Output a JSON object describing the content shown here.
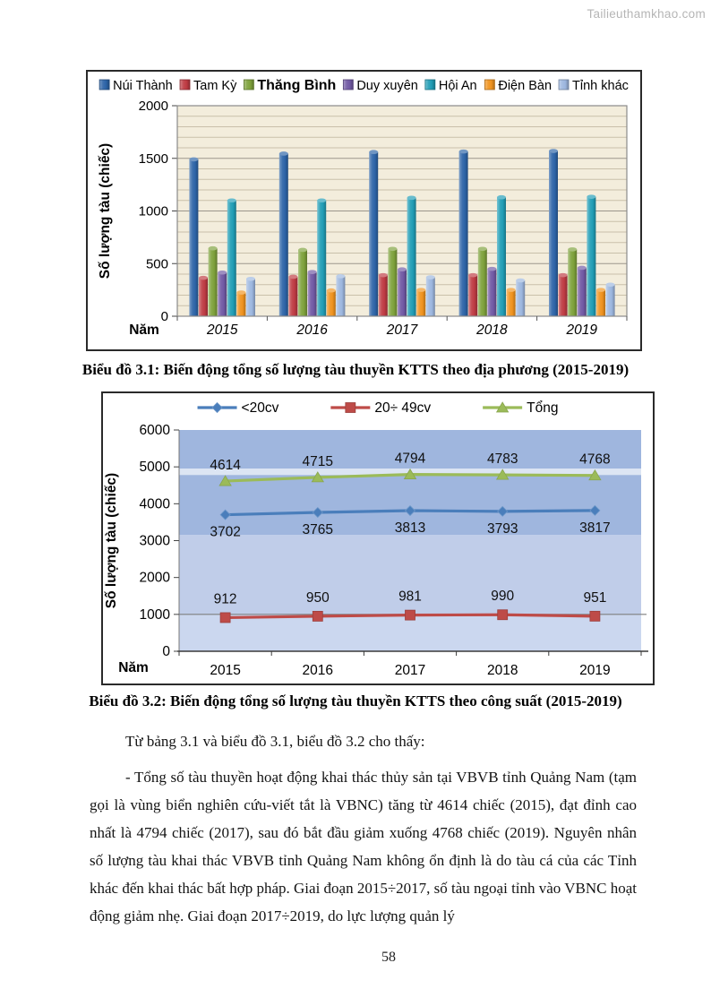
{
  "watermark": "Tailieuthamkhao.com",
  "page_number": "58",
  "captions": {
    "chart1": "Biểu đồ 3.1: Biến động tổng số lượng tàu thuyền KTTS theo địa phương (2015-2019)",
    "chart2": "Biểu đồ 3.2: Biến động tổng số lượng tàu thuyền KTTS theo công suất (2015-2019)"
  },
  "paragraphs": [
    "Từ bảng 3.1 và biểu đồ 3.1, biểu đồ 3.2 cho thấy:",
    "- Tổng số tàu thuyền hoạt động khai thác thủy sản tại VBVB tỉnh Quảng Nam (tạm gọi là vùng biển nghiên cứu-viết tắt là VBNC) tăng từ 4614 chiếc (2015), đạt đỉnh cao nhất là 4794 chiếc (2017), sau đó bắt đầu giảm xuống 4768 chiếc (2019). Nguyên nhân số lượng tàu khai thác VBVB tỉnh Quảng Nam không ổn định là do tàu cá của các Tỉnh khác đến khai thác bất hợp pháp. Giai đoạn 2015÷2017, số tàu ngoại tỉnh vào VBNC hoạt động giảm nhẹ. Giai đoạn 2017÷2019, do lực lượng quản lý"
  ],
  "chart_data": [
    {
      "type": "bar",
      "title": "",
      "categories": [
        "2015",
        "2016",
        "2017",
        "2018",
        "2019"
      ],
      "series": [
        {
          "name": "Núi Thành",
          "color": "#2D64A7",
          "values": [
            1490,
            1545,
            1560,
            1565,
            1570
          ]
        },
        {
          "name": "Tam Kỳ",
          "color": "#BE3B43",
          "values": [
            365,
            375,
            390,
            390,
            390
          ]
        },
        {
          "name": "Thăng Bình",
          "color": "#7EA13B",
          "values": [
            645,
            630,
            640,
            640,
            635
          ],
          "legend_bold": true
        },
        {
          "name": "Duy xuyên",
          "color": "#7159A4",
          "values": [
            415,
            420,
            445,
            450,
            460
          ]
        },
        {
          "name": "Hội An",
          "color": "#219DB5",
          "values": [
            1100,
            1100,
            1125,
            1130,
            1135
          ]
        },
        {
          "name": "Điện Bàn",
          "color": "#F0931F",
          "values": [
            225,
            245,
            250,
            250,
            250
          ]
        },
        {
          "name": "Tỉnh khác",
          "color": "#9DB7DF",
          "values": [
            355,
            380,
            370,
            340,
            300
          ]
        }
      ],
      "xlabel": "Năm",
      "ylabel": "Số lượng tàu (chiếc)",
      "ylim": [
        0,
        2000
      ],
      "yticks": [
        0,
        500,
        1000,
        1500,
        2000
      ],
      "minor_grid_step": 100,
      "plot_bg": "#F3EDDC",
      "legend_position": "top",
      "grid": true
    },
    {
      "type": "line",
      "title": "",
      "categories": [
        "2015",
        "2016",
        "2017",
        "2018",
        "2019"
      ],
      "series": [
        {
          "name": "<20cv",
          "color": "#4A7EBB",
          "marker": "diamond",
          "values": [
            3702,
            3765,
            3813,
            3793,
            3817
          ],
          "label_pos": "below"
        },
        {
          "name": "20÷ 49cv",
          "color": "#BE4B48",
          "marker": "square",
          "values": [
            912,
            950,
            981,
            990,
            951
          ],
          "label_pos": "above"
        },
        {
          "name": "Tổng",
          "color": "#9BBB59",
          "marker": "triangle",
          "values": [
            4614,
            4715,
            4794,
            4783,
            4768
          ],
          "label_pos": "above"
        }
      ],
      "xlabel": "Năm",
      "ylabel": "Số lượng tàu (chiếc)",
      "ylim": [
        0,
        6000
      ],
      "yticks": [
        0,
        1000,
        2000,
        3000,
        4000,
        5000,
        6000
      ],
      "plot_bands": [
        {
          "from": 6000,
          "to": 4950,
          "color": "#9FB6DE"
        },
        {
          "from": 4950,
          "to": 4780,
          "color": "#DCE5F3"
        },
        {
          "from": 4780,
          "to": 3150,
          "color": "#9FB6DE"
        },
        {
          "from": 3150,
          "to": 1000,
          "color": "#C0CDE9"
        },
        {
          "from": 1000,
          "to": 0,
          "color": "#CBD7EF"
        }
      ],
      "gridline_at": 1000,
      "legend_position": "top"
    }
  ]
}
